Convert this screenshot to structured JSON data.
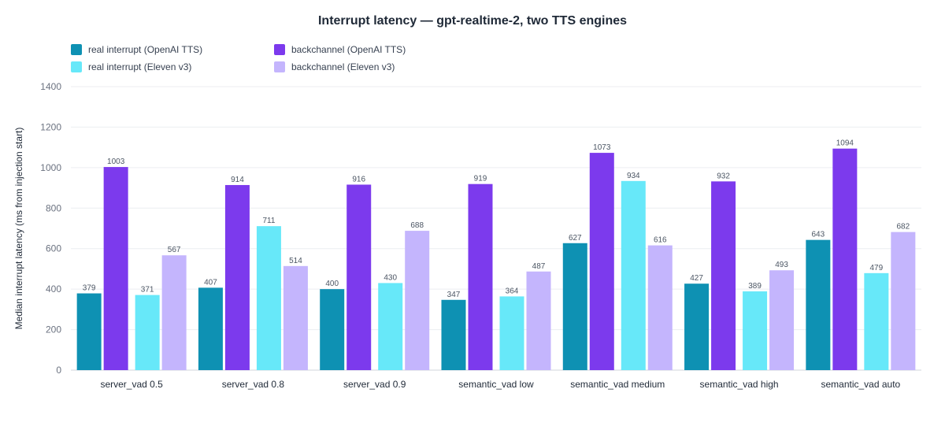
{
  "chart_data": {
    "type": "bar",
    "title": "Interrupt latency — gpt-realtime-2, two TTS engines",
    "xlabel": "",
    "ylabel": "Median interrupt latency (ms from injection start)",
    "ylim": [
      0,
      1400
    ],
    "yticks": [
      0,
      200,
      400,
      600,
      800,
      1000,
      1200,
      1400
    ],
    "grid": true,
    "legend_position": "top-left",
    "categories": [
      "server_vad 0.5",
      "server_vad 0.8",
      "server_vad 0.9",
      "semantic_vad low",
      "semantic_vad medium",
      "semantic_vad high",
      "semantic_vad auto"
    ],
    "series": [
      {
        "name": "real interrupt (OpenAI TTS)",
        "color": "#0e91b3",
        "values": [
          379,
          407,
          400,
          347,
          627,
          427,
          643
        ]
      },
      {
        "name": "backchannel (OpenAI TTS)",
        "color": "#7c3aed",
        "values": [
          1003,
          914,
          916,
          919,
          1073,
          932,
          1094
        ]
      },
      {
        "name": "real interrupt (Eleven v3)",
        "color": "#67e8f9",
        "values": [
          371,
          711,
          430,
          364,
          934,
          389,
          479
        ]
      },
      {
        "name": "backchannel (Eleven v3)",
        "color": "#c4b5fd",
        "values": [
          567,
          514,
          688,
          487,
          616,
          493,
          682
        ]
      }
    ]
  }
}
